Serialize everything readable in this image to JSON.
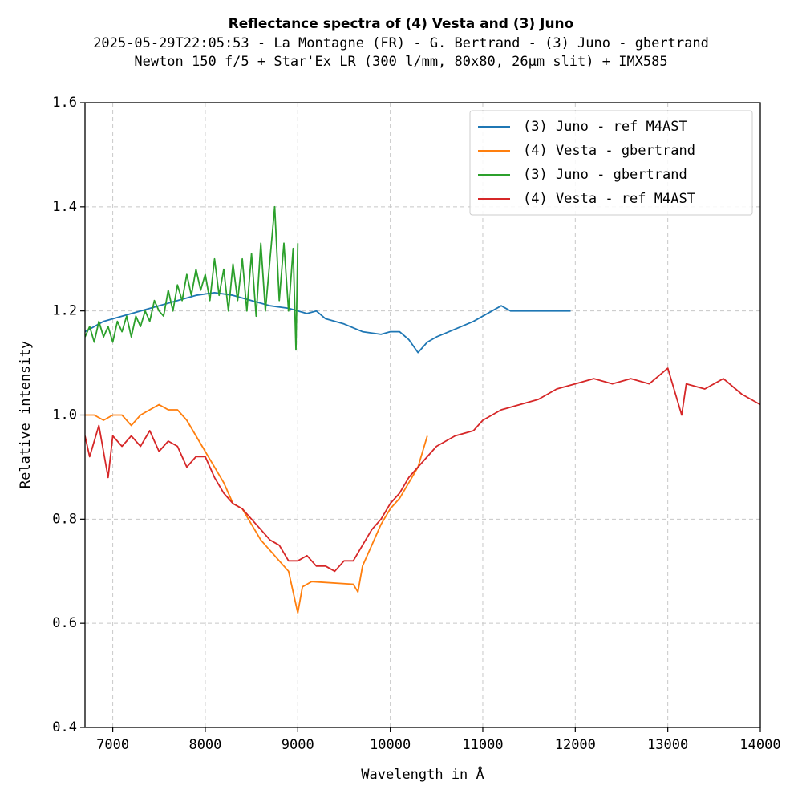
{
  "chart_data": {
    "type": "line",
    "title": "Reflectance spectra of (4) Vesta and (3) Juno",
    "subtitle": [
      "2025-05-29T22:05:53 - La Montagne (FR) - G. Bertrand - (3) Juno - gbertrand",
      "Newton 150 f/5 + Star'Ex LR (300 l/mm, 80x80, 26µm slit) + IMX585"
    ],
    "xlabel": "Wavelength in Å",
    "ylabel": "Relative intensity",
    "xlim": [
      6700,
      14000
    ],
    "xticks": [
      7000,
      8000,
      9000,
      10000,
      11000,
      12000,
      13000,
      14000
    ],
    "ylim": [
      0.4,
      1.6
    ],
    "yticks": [
      0.4,
      0.6,
      0.8,
      {
        "value": 1,
        "label": "1.0"
      },
      1.2,
      1.4,
      1.6
    ],
    "grid": true,
    "legend": "upper right",
    "series": [
      {
        "name": "(3) Juno - ref M4AST",
        "color": "#1f77b4",
        "x": [
          6700,
          6900,
          7100,
          7300,
          7500,
          7700,
          7900,
          8100,
          8300,
          8500,
          8700,
          8900,
          9100,
          9200,
          9300,
          9500,
          9700,
          9900,
          10000,
          10100,
          10200,
          10300,
          10400,
          10500,
          10700,
          10900,
          11100,
          11200,
          11300,
          11500,
          11950
        ],
        "values": [
          1.16,
          1.18,
          1.19,
          1.2,
          1.21,
          1.22,
          1.23,
          1.235,
          1.23,
          1.22,
          1.21,
          1.205,
          1.195,
          1.2,
          1.185,
          1.175,
          1.16,
          1.155,
          1.16,
          1.16,
          1.145,
          1.12,
          1.14,
          1.15,
          1.165,
          1.18,
          1.2,
          1.21,
          1.2,
          1.2,
          1.2
        ]
      },
      {
        "name": "(4) Vesta - gbertrand",
        "color": "#ff7f0e",
        "x": [
          6700,
          6800,
          6900,
          7000,
          7100,
          7200,
          7300,
          7400,
          7500,
          7600,
          7700,
          7800,
          7900,
          8000,
          8100,
          8200,
          8300,
          8400,
          8500,
          8600,
          8700,
          8800,
          8900,
          8950,
          9000,
          9050,
          9150,
          9600,
          9650,
          9700,
          9800,
          9900,
          10000,
          10100,
          10200,
          10300,
          10400
        ],
        "values": [
          1.0,
          1.0,
          0.99,
          1.0,
          1.0,
          0.98,
          1.0,
          1.01,
          1.02,
          1.01,
          1.01,
          0.99,
          0.96,
          0.93,
          0.9,
          0.87,
          0.83,
          0.82,
          0.79,
          0.76,
          0.74,
          0.72,
          0.7,
          0.66,
          0.62,
          0.67,
          0.68,
          0.675,
          0.66,
          0.71,
          0.75,
          0.79,
          0.82,
          0.84,
          0.87,
          0.9,
          0.96
        ]
      },
      {
        "name": "(3) Juno - gbertrand",
        "color": "#2ca02c",
        "x": [
          6700,
          6750,
          6800,
          6850,
          6900,
          6950,
          7000,
          7050,
          7100,
          7150,
          7200,
          7250,
          7300,
          7350,
          7400,
          7450,
          7500,
          7550,
          7600,
          7650,
          7700,
          7750,
          7800,
          7850,
          7900,
          7950,
          8000,
          8050,
          8100,
          8150,
          8200,
          8250,
          8300,
          8350,
          8400,
          8450,
          8500,
          8550,
          8600,
          8650,
          8700,
          8750,
          8800,
          8850,
          8900,
          8950,
          8980,
          9000
        ],
        "values": [
          1.15,
          1.17,
          1.14,
          1.18,
          1.15,
          1.17,
          1.14,
          1.18,
          1.16,
          1.19,
          1.15,
          1.19,
          1.17,
          1.2,
          1.18,
          1.22,
          1.2,
          1.19,
          1.24,
          1.2,
          1.25,
          1.22,
          1.27,
          1.23,
          1.28,
          1.24,
          1.27,
          1.22,
          1.3,
          1.23,
          1.28,
          1.2,
          1.29,
          1.22,
          1.3,
          1.2,
          1.31,
          1.19,
          1.33,
          1.2,
          1.3,
          1.4,
          1.22,
          1.33,
          1.2,
          1.32,
          1.125,
          1.33
        ]
      },
      {
        "name": "(4) Vesta - ref M4AST",
        "color": "#d62728",
        "x": [
          6700,
          6750,
          6850,
          6950,
          7000,
          7100,
          7200,
          7300,
          7400,
          7500,
          7600,
          7700,
          7800,
          7900,
          8000,
          8100,
          8200,
          8300,
          8400,
          8500,
          8600,
          8700,
          8800,
          8900,
          9000,
          9100,
          9200,
          9300,
          9400,
          9500,
          9600,
          9700,
          9800,
          9900,
          10000,
          10100,
          10200,
          10300,
          10400,
          10500,
          10700,
          10900,
          11000,
          11200,
          11400,
          11600,
          11800,
          12000,
          12200,
          12400,
          12600,
          12800,
          13000,
          13150,
          13200,
          13400,
          13600,
          13800,
          14000
        ],
        "values": [
          0.96,
          0.92,
          0.98,
          0.88,
          0.96,
          0.94,
          0.96,
          0.94,
          0.97,
          0.93,
          0.95,
          0.94,
          0.9,
          0.92,
          0.92,
          0.88,
          0.85,
          0.83,
          0.82,
          0.8,
          0.78,
          0.76,
          0.75,
          0.72,
          0.72,
          0.73,
          0.71,
          0.71,
          0.7,
          0.72,
          0.72,
          0.75,
          0.78,
          0.8,
          0.83,
          0.85,
          0.88,
          0.9,
          0.92,
          0.94,
          0.96,
          0.97,
          0.99,
          1.01,
          1.02,
          1.03,
          1.05,
          1.06,
          1.07,
          1.06,
          1.07,
          1.06,
          1.09,
          1.0,
          1.06,
          1.05,
          1.07,
          1.04,
          1.02
        ]
      }
    ]
  }
}
